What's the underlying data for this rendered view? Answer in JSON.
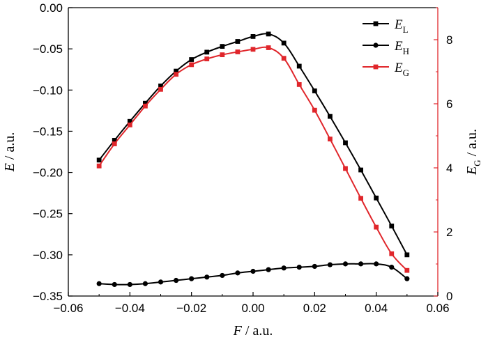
{
  "chart_data": {
    "type": "line",
    "x": [
      -0.05,
      -0.045,
      -0.04,
      -0.035,
      -0.03,
      -0.025,
      -0.02,
      -0.015,
      -0.01,
      -0.005,
      0.0,
      0.005,
      0.01,
      0.015,
      0.02,
      0.025,
      0.03,
      0.035,
      0.04,
      0.045,
      0.05
    ],
    "xlabel": {
      "main": "F",
      "unit": " / a.u."
    },
    "ylabel_left": {
      "main": "E",
      "unit": " / a.u."
    },
    "ylabel_right": {
      "main": "E",
      "sub": "G",
      "unit": " / a.u."
    },
    "xlim": [
      -0.06,
      0.06
    ],
    "ylim_left": [
      -0.35,
      0.0
    ],
    "ylim_right": [
      0,
      9
    ],
    "xticks": [
      -0.06,
      -0.04,
      -0.02,
      0.0,
      0.02,
      0.04,
      0.06
    ],
    "xtick_labels": [
      "−0.06",
      "−0.04",
      "−0.02",
      "0.00",
      "0.02",
      "0.04",
      "0.06"
    ],
    "yticks_left": [
      0.0,
      -0.05,
      -0.1,
      -0.15,
      -0.2,
      -0.25,
      -0.3,
      -0.35
    ],
    "ytick_labels_left": [
      "0.00",
      "−0.05",
      "−0.10",
      "−0.15",
      "−0.20",
      "−0.25",
      "−0.30",
      "−0.35"
    ],
    "yticks_right": [
      0,
      2,
      4,
      6,
      8
    ],
    "ytick_labels_right": [
      "0",
      "2",
      "4",
      "6",
      "8"
    ],
    "grid": false,
    "legend_position": "top-right",
    "series": [
      {
        "name": "E",
        "sub": "L",
        "axis": "left",
        "color": "#000000",
        "marker": "square",
        "values": [
          -0.185,
          -0.161,
          -0.138,
          -0.116,
          -0.095,
          -0.077,
          -0.063,
          -0.054,
          -0.047,
          -0.041,
          -0.035,
          -0.032,
          -0.043,
          -0.071,
          -0.101,
          -0.132,
          -0.164,
          -0.197,
          -0.231,
          -0.265,
          -0.3
        ]
      },
      {
        "name": "E",
        "sub": "H",
        "axis": "left",
        "color": "#000000",
        "marker": "circle",
        "values": [
          -0.335,
          -0.336,
          -0.336,
          -0.335,
          -0.333,
          -0.331,
          -0.329,
          -0.327,
          -0.325,
          -0.322,
          -0.32,
          -0.318,
          -0.316,
          -0.315,
          -0.314,
          -0.312,
          -0.311,
          -0.311,
          -0.311,
          -0.315,
          -0.329
        ]
      },
      {
        "name": "E",
        "sub": "G",
        "axis": "right",
        "color": "#e0262b",
        "marker": "square",
        "values": [
          4.06,
          4.75,
          5.34,
          5.93,
          6.45,
          6.92,
          7.22,
          7.4,
          7.53,
          7.62,
          7.7,
          7.75,
          7.42,
          6.6,
          5.8,
          4.9,
          3.98,
          3.05,
          2.15,
          1.32,
          0.8
        ]
      }
    ]
  }
}
